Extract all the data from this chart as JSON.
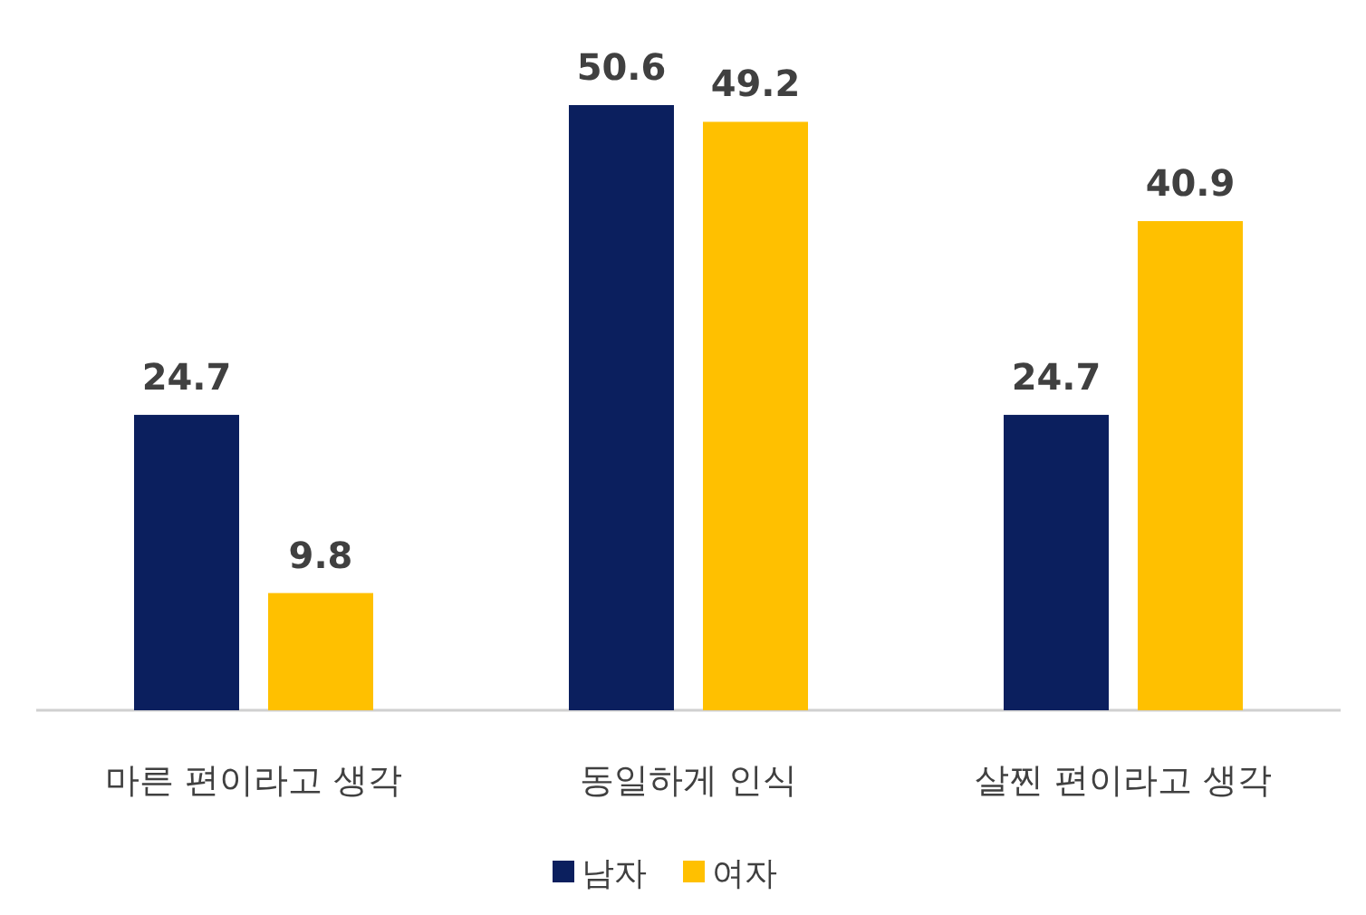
{
  "chart_data": {
    "type": "bar",
    "categories": [
      "마른 편이라고 생각",
      "동일하게 인식",
      "살찐 편이라고 생각"
    ],
    "series": [
      {
        "name": "남자",
        "color": "#0b1f5e",
        "values": [
          24.7,
          50.6,
          24.7
        ]
      },
      {
        "name": "여자",
        "color": "#ffc000",
        "values": [
          9.8,
          49.2,
          40.9
        ]
      }
    ],
    "data_labels": true,
    "legend": "bottom"
  }
}
